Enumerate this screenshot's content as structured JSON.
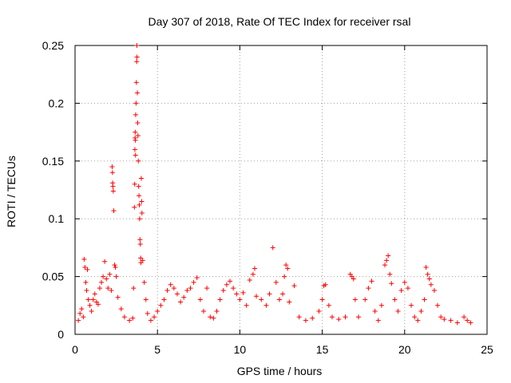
{
  "chart_data": {
    "type": "scatter",
    "title": "Day 307 of 2018, Rate Of TEC Index for receiver rsal",
    "xlabel": "GPS time / hours",
    "ylabel": "ROTI / TECUs",
    "xlim": [
      0,
      25
    ],
    "ylim": [
      0,
      0.25
    ],
    "x_ticks": [
      0,
      5,
      10,
      15,
      20,
      25
    ],
    "y_ticks": [
      "0",
      "0.05",
      "0.1",
      "0.15",
      "0.2",
      "0.25"
    ],
    "grid": true,
    "marker": "+",
    "color": "#ff0000",
    "series": [
      {
        "points": [
          [
            0.2,
            0.012
          ],
          [
            0.3,
            0.018
          ],
          [
            0.4,
            0.022
          ],
          [
            0.5,
            0.015
          ],
          [
            0.55,
            0.065
          ],
          [
            0.6,
            0.058
          ],
          [
            0.65,
            0.045
          ],
          [
            0.7,
            0.038
          ],
          [
            0.75,
            0.056
          ],
          [
            0.8,
            0.03
          ],
          [
            0.9,
            0.025
          ],
          [
            1.0,
            0.02
          ],
          [
            1.1,
            0.03
          ],
          [
            1.2,
            0.035
          ],
          [
            1.3,
            0.028
          ],
          [
            1.4,
            0.026
          ],
          [
            1.5,
            0.04
          ],
          [
            1.6,
            0.045
          ],
          [
            1.7,
            0.05
          ],
          [
            1.8,
            0.063
          ],
          [
            1.9,
            0.048
          ],
          [
            2.0,
            0.04
          ],
          [
            2.1,
            0.052
          ],
          [
            2.2,
            0.038
          ],
          [
            2.25,
            0.145
          ],
          [
            2.27,
            0.14
          ],
          [
            2.28,
            0.131
          ],
          [
            2.3,
            0.128
          ],
          [
            2.32,
            0.124
          ],
          [
            2.35,
            0.107
          ],
          [
            2.4,
            0.06
          ],
          [
            2.45,
            0.058
          ],
          [
            2.5,
            0.05
          ],
          [
            2.6,
            0.032
          ],
          [
            2.8,
            0.022
          ],
          [
            3.0,
            0.015
          ],
          [
            3.3,
            0.012
          ],
          [
            3.5,
            0.014
          ],
          [
            3.55,
            0.04
          ],
          [
            3.6,
            0.11
          ],
          [
            3.62,
            0.13
          ],
          [
            3.63,
            0.16
          ],
          [
            3.64,
            0.17
          ],
          [
            3.65,
            0.175
          ],
          [
            3.66,
            0.168
          ],
          [
            3.67,
            0.155
          ],
          [
            3.68,
            0.19
          ],
          [
            3.7,
            0.2
          ],
          [
            3.72,
            0.218
          ],
          [
            3.74,
            0.236
          ],
          [
            3.75,
            0.25
          ],
          [
            3.76,
            0.24
          ],
          [
            3.78,
            0.209
          ],
          [
            3.8,
            0.183
          ],
          [
            3.82,
            0.172
          ],
          [
            3.84,
            0.15
          ],
          [
            3.86,
            0.128
          ],
          [
            3.88,
            0.12
          ],
          [
            3.9,
            0.112
          ],
          [
            3.92,
            0.1
          ],
          [
            3.94,
            0.082
          ],
          [
            3.96,
            0.078
          ],
          [
            3.98,
            0.066
          ],
          [
            4.0,
            0.062
          ],
          [
            4.02,
            0.135
          ],
          [
            4.04,
            0.115
          ],
          [
            4.06,
            0.105
          ],
          [
            4.1,
            0.064
          ],
          [
            4.2,
            0.045
          ],
          [
            4.3,
            0.03
          ],
          [
            4.4,
            0.018
          ],
          [
            4.6,
            0.012
          ],
          [
            4.8,
            0.015
          ],
          [
            5.0,
            0.02
          ],
          [
            5.2,
            0.025
          ],
          [
            5.4,
            0.03
          ],
          [
            5.6,
            0.038
          ],
          [
            5.8,
            0.043
          ],
          [
            6.0,
            0.04
          ],
          [
            6.2,
            0.035
          ],
          [
            6.4,
            0.028
          ],
          [
            6.6,
            0.032
          ],
          [
            6.8,
            0.038
          ],
          [
            7.0,
            0.04
          ],
          [
            7.2,
            0.045
          ],
          [
            7.4,
            0.049
          ],
          [
            7.6,
            0.03
          ],
          [
            7.8,
            0.02
          ],
          [
            8.0,
            0.04
          ],
          [
            8.2,
            0.015
          ],
          [
            8.4,
            0.014
          ],
          [
            8.6,
            0.02
          ],
          [
            8.8,
            0.03
          ],
          [
            9.0,
            0.038
          ],
          [
            9.2,
            0.043
          ],
          [
            9.4,
            0.046
          ],
          [
            9.6,
            0.04
          ],
          [
            9.8,
            0.035
          ],
          [
            10.0,
            0.03
          ],
          [
            10.2,
            0.036
          ],
          [
            10.4,
            0.025
          ],
          [
            10.6,
            0.047
          ],
          [
            10.8,
            0.052
          ],
          [
            10.9,
            0.057
          ],
          [
            11.0,
            0.033
          ],
          [
            11.3,
            0.03
          ],
          [
            11.6,
            0.025
          ],
          [
            11.8,
            0.035
          ],
          [
            12.0,
            0.075
          ],
          [
            12.2,
            0.045
          ],
          [
            12.4,
            0.03
          ],
          [
            12.6,
            0.035
          ],
          [
            12.7,
            0.05
          ],
          [
            12.8,
            0.06
          ],
          [
            12.9,
            0.057
          ],
          [
            13.0,
            0.028
          ],
          [
            13.3,
            0.042
          ],
          [
            13.6,
            0.015
          ],
          [
            14.0,
            0.012
          ],
          [
            14.4,
            0.014
          ],
          [
            14.8,
            0.02
          ],
          [
            15.0,
            0.03
          ],
          [
            15.1,
            0.042
          ],
          [
            15.2,
            0.043
          ],
          [
            15.4,
            0.025
          ],
          [
            15.6,
            0.015
          ],
          [
            16.0,
            0.013
          ],
          [
            16.4,
            0.015
          ],
          [
            16.7,
            0.052
          ],
          [
            16.8,
            0.05
          ],
          [
            16.9,
            0.048
          ],
          [
            17.0,
            0.03
          ],
          [
            17.2,
            0.015
          ],
          [
            17.6,
            0.03
          ],
          [
            17.8,
            0.04
          ],
          [
            18.0,
            0.046
          ],
          [
            18.2,
            0.02
          ],
          [
            18.4,
            0.012
          ],
          [
            18.6,
            0.025
          ],
          [
            18.8,
            0.06
          ],
          [
            18.9,
            0.064
          ],
          [
            19.0,
            0.068
          ],
          [
            19.1,
            0.052
          ],
          [
            19.2,
            0.044
          ],
          [
            19.4,
            0.03
          ],
          [
            19.6,
            0.02
          ],
          [
            19.8,
            0.038
          ],
          [
            20.0,
            0.045
          ],
          [
            20.2,
            0.04
          ],
          [
            20.4,
            0.025
          ],
          [
            20.6,
            0.015
          ],
          [
            20.8,
            0.012
          ],
          [
            21.0,
            0.02
          ],
          [
            21.2,
            0.03
          ],
          [
            21.3,
            0.058
          ],
          [
            21.4,
            0.052
          ],
          [
            21.5,
            0.048
          ],
          [
            21.6,
            0.043
          ],
          [
            21.8,
            0.038
          ],
          [
            22.0,
            0.025
          ],
          [
            22.2,
            0.015
          ],
          [
            22.4,
            0.013
          ],
          [
            22.8,
            0.012
          ],
          [
            23.2,
            0.01
          ],
          [
            23.6,
            0.015
          ],
          [
            23.8,
            0.012
          ],
          [
            24.0,
            0.01
          ]
        ]
      }
    ]
  }
}
